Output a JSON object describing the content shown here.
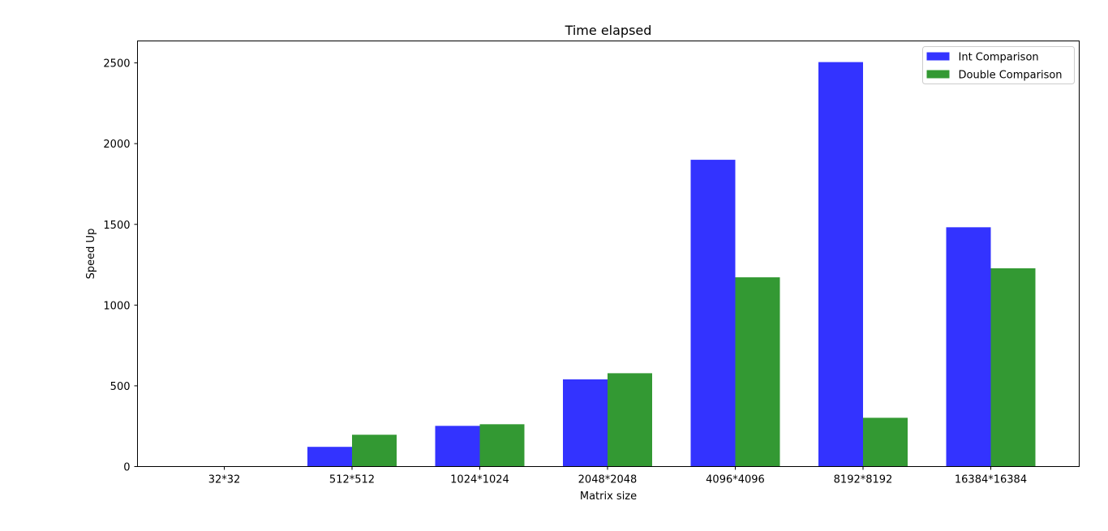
{
  "chart_data": {
    "type": "bar",
    "title": "Time elapsed",
    "xlabel": "Matrix size",
    "ylabel": "Speed Up",
    "categories": [
      "32*32",
      "512*512",
      "1024*1024",
      "2048*2048",
      "4096*4096",
      "8192*8192",
      "16384*16384"
    ],
    "series": [
      {
        "name": "Int Comparison",
        "color": "#3333ff",
        "values": [
          0,
          122,
          252,
          540,
          1900,
          2505,
          1482
        ]
      },
      {
        "name": "Double Comparison",
        "color": "#339933",
        "values": [
          0,
          197,
          262,
          578,
          1172,
          302,
          1228
        ]
      }
    ],
    "ylim": [
      0,
      2636
    ],
    "yticks": [
      0,
      500,
      1000,
      1500,
      2000,
      2500
    ],
    "grid": false,
    "legend_position": "top-right"
  }
}
